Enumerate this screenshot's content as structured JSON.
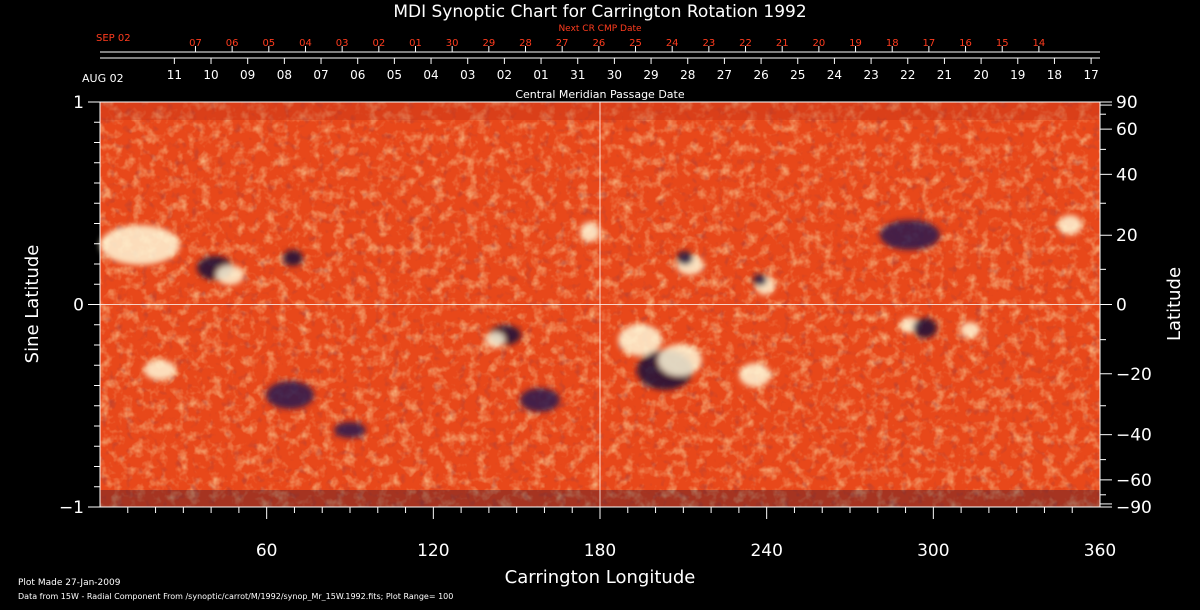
{
  "chart_data": {
    "type": "heatmap",
    "title": "MDI Synoptic Chart for Carrington Rotation 1992",
    "xlabel": "Carrington Longitude",
    "ylabel_left": "Sine Latitude",
    "ylabel_right": "Latitude",
    "xlim": [
      0,
      360
    ],
    "ylim": [
      -1,
      1
    ],
    "x_ticks": [
      60,
      120,
      180,
      240,
      300,
      360
    ],
    "y_ticks_left": [
      {
        "value": 1,
        "label": "1"
      },
      {
        "value": 0,
        "label": "0"
      },
      {
        "value": -1,
        "label": "−1"
      }
    ],
    "y_ticks_right": [
      90,
      60,
      40,
      20,
      0,
      -20,
      -40,
      -60,
      -90
    ],
    "y_ticks_right_labels": [
      "90",
      "60",
      "40",
      "20",
      "0",
      "−20",
      "−40",
      "−60",
      "−90"
    ],
    "cmp_axis": {
      "label": "Central Meridian Passage Date",
      "month_label": "AUG 02",
      "dates": [
        "17",
        "18",
        "19",
        "20",
        "21",
        "22",
        "23",
        "24",
        "25",
        "26",
        "27",
        "28",
        "29",
        "30",
        "31",
        "01",
        "02",
        "03",
        "04",
        "05",
        "06",
        "07",
        "08",
        "09",
        "10",
        "11"
      ]
    },
    "next_cmp_axis": {
      "label": "Next CR CMP Date",
      "month_label": "SEP 02",
      "dates": [
        "14",
        "15",
        "16",
        "17",
        "18",
        "19",
        "20",
        "21",
        "22",
        "23",
        "24",
        "25",
        "26",
        "27",
        "28",
        "29",
        "30",
        "01",
        "02",
        "03",
        "04",
        "05",
        "06",
        "07"
      ]
    },
    "grid_lines": {
      "vertical_at_longitude": 180,
      "horizontal_at_sine_latitude": 0
    },
    "colors": {
      "background": "#000000",
      "base": "#e8481a",
      "positive": "#fff6c8",
      "negative": "#1a1040",
      "accent_text": "#ff3c1e"
    }
  },
  "footer": {
    "plot_made": "Plot Made 27-Jan-2009",
    "data_from": "Data from 15W - Radial Component From /synoptic/carrot/M/1992/synop_Mr_15W.1992.fits; Plot Range=  100"
  }
}
